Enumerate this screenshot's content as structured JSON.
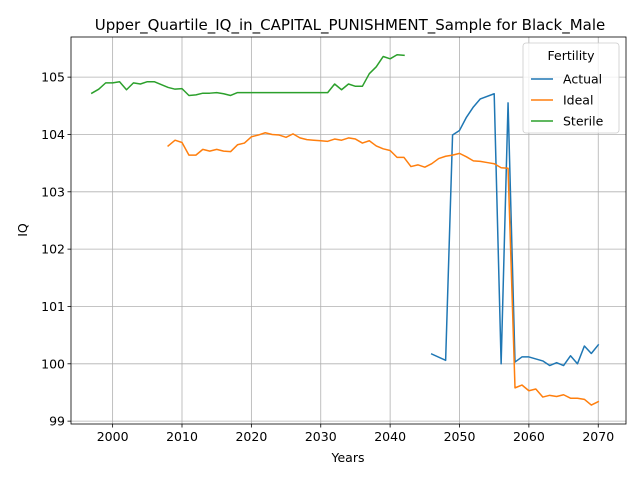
{
  "chart_data": {
    "type": "line",
    "title": "Upper_Quartile_IQ_in_CAPITAL_PUNISHMENT_Sample for Black_Male",
    "xlabel": "Years",
    "ylabel": "IQ",
    "xlim": [
      1994,
      2074
    ],
    "ylim": [
      98.95,
      105.7
    ],
    "xticks": [
      2000,
      2010,
      2020,
      2030,
      2040,
      2050,
      2060,
      2070
    ],
    "yticks": [
      99,
      100,
      101,
      102,
      103,
      104,
      105
    ],
    "grid": true,
    "legend": {
      "title": "Fertility",
      "position": "top-right"
    },
    "series": [
      {
        "name": "Actual",
        "color": "#1f77b4",
        "points": [
          [
            2046,
            100.17
          ],
          [
            2048,
            100.06
          ],
          [
            2049,
            103.99
          ],
          [
            2050,
            104.07
          ],
          [
            2051,
            104.3
          ],
          [
            2052,
            104.48
          ],
          [
            2053,
            104.62
          ],
          [
            2055,
            104.71
          ],
          [
            2056,
            100.0
          ],
          [
            2057,
            104.55
          ],
          [
            2058,
            100.03
          ],
          [
            2059,
            100.12
          ],
          [
            2060,
            100.12
          ],
          [
            2062,
            100.05
          ],
          [
            2063,
            99.97
          ],
          [
            2064,
            100.02
          ],
          [
            2065,
            99.97
          ],
          [
            2066,
            100.14
          ],
          [
            2067,
            100.0
          ],
          [
            2068,
            100.31
          ],
          [
            2069,
            100.18
          ],
          [
            2070,
            100.33
          ]
        ]
      },
      {
        "name": "Ideal",
        "color": "#ff7f0e",
        "points": [
          [
            2008,
            103.8
          ],
          [
            2009,
            103.9
          ],
          [
            2010,
            103.86
          ],
          [
            2011,
            103.64
          ],
          [
            2012,
            103.64
          ],
          [
            2013,
            103.74
          ],
          [
            2014,
            103.71
          ],
          [
            2015,
            103.74
          ],
          [
            2016,
            103.71
          ],
          [
            2017,
            103.7
          ],
          [
            2018,
            103.82
          ],
          [
            2019,
            103.85
          ],
          [
            2020,
            103.96
          ],
          [
            2021,
            103.99
          ],
          [
            2022,
            104.03
          ],
          [
            2023,
            104.0
          ],
          [
            2024,
            103.99
          ],
          [
            2025,
            103.95
          ],
          [
            2026,
            104.01
          ],
          [
            2027,
            103.94
          ],
          [
            2028,
            103.91
          ],
          [
            2029,
            103.9
          ],
          [
            2030,
            103.89
          ],
          [
            2031,
            103.88
          ],
          [
            2032,
            103.92
          ],
          [
            2033,
            103.9
          ],
          [
            2034,
            103.94
          ],
          [
            2035,
            103.92
          ],
          [
            2036,
            103.85
          ],
          [
            2037,
            103.89
          ],
          [
            2038,
            103.8
          ],
          [
            2039,
            103.75
          ],
          [
            2040,
            103.72
          ],
          [
            2041,
            103.6
          ],
          [
            2042,
            103.6
          ],
          [
            2043,
            103.44
          ],
          [
            2044,
            103.47
          ],
          [
            2045,
            103.43
          ],
          [
            2046,
            103.49
          ],
          [
            2047,
            103.58
          ],
          [
            2048,
            103.62
          ],
          [
            2049,
            103.64
          ],
          [
            2050,
            103.67
          ],
          [
            2051,
            103.61
          ],
          [
            2052,
            103.54
          ],
          [
            2053,
            103.53
          ],
          [
            2054,
            103.51
          ],
          [
            2055,
            103.49
          ],
          [
            2056,
            103.42
          ],
          [
            2057,
            103.41
          ],
          [
            2058,
            99.58
          ],
          [
            2059,
            99.63
          ],
          [
            2060,
            99.53
          ],
          [
            2061,
            99.56
          ],
          [
            2062,
            99.42
          ],
          [
            2063,
            99.45
          ],
          [
            2064,
            99.43
          ],
          [
            2065,
            99.46
          ],
          [
            2066,
            99.4
          ],
          [
            2067,
            99.4
          ],
          [
            2068,
            99.38
          ],
          [
            2069,
            99.28
          ],
          [
            2070,
            99.34
          ]
        ]
      },
      {
        "name": "Sterile",
        "color": "#2ca02c",
        "points": [
          [
            1997,
            104.72
          ],
          [
            1998,
            104.79
          ],
          [
            1999,
            104.9
          ],
          [
            2000,
            104.9
          ],
          [
            2001,
            104.92
          ],
          [
            2002,
            104.78
          ],
          [
            2003,
            104.9
          ],
          [
            2004,
            104.88
          ],
          [
            2005,
            104.92
          ],
          [
            2006,
            104.92
          ],
          [
            2007,
            104.87
          ],
          [
            2008,
            104.82
          ],
          [
            2009,
            104.79
          ],
          [
            2010,
            104.8
          ],
          [
            2011,
            104.68
          ],
          [
            2012,
            104.69
          ],
          [
            2013,
            104.72
          ],
          [
            2014,
            104.72
          ],
          [
            2015,
            104.73
          ],
          [
            2016,
            104.71
          ],
          [
            2017,
            104.68
          ],
          [
            2018,
            104.73
          ],
          [
            2019,
            104.73
          ],
          [
            2020,
            104.73
          ],
          [
            2021,
            104.73
          ],
          [
            2022,
            104.73
          ],
          [
            2023,
            104.73
          ],
          [
            2024,
            104.73
          ],
          [
            2025,
            104.73
          ],
          [
            2026,
            104.73
          ],
          [
            2027,
            104.73
          ],
          [
            2028,
            104.73
          ],
          [
            2029,
            104.73
          ],
          [
            2030,
            104.73
          ],
          [
            2031,
            104.73
          ],
          [
            2032,
            104.88
          ],
          [
            2033,
            104.78
          ],
          [
            2034,
            104.88
          ],
          [
            2035,
            104.84
          ],
          [
            2036,
            104.84
          ],
          [
            2037,
            105.06
          ],
          [
            2038,
            105.18
          ],
          [
            2039,
            105.36
          ],
          [
            2040,
            105.32
          ],
          [
            2041,
            105.39
          ],
          [
            2042,
            105.38
          ]
        ]
      }
    ]
  }
}
